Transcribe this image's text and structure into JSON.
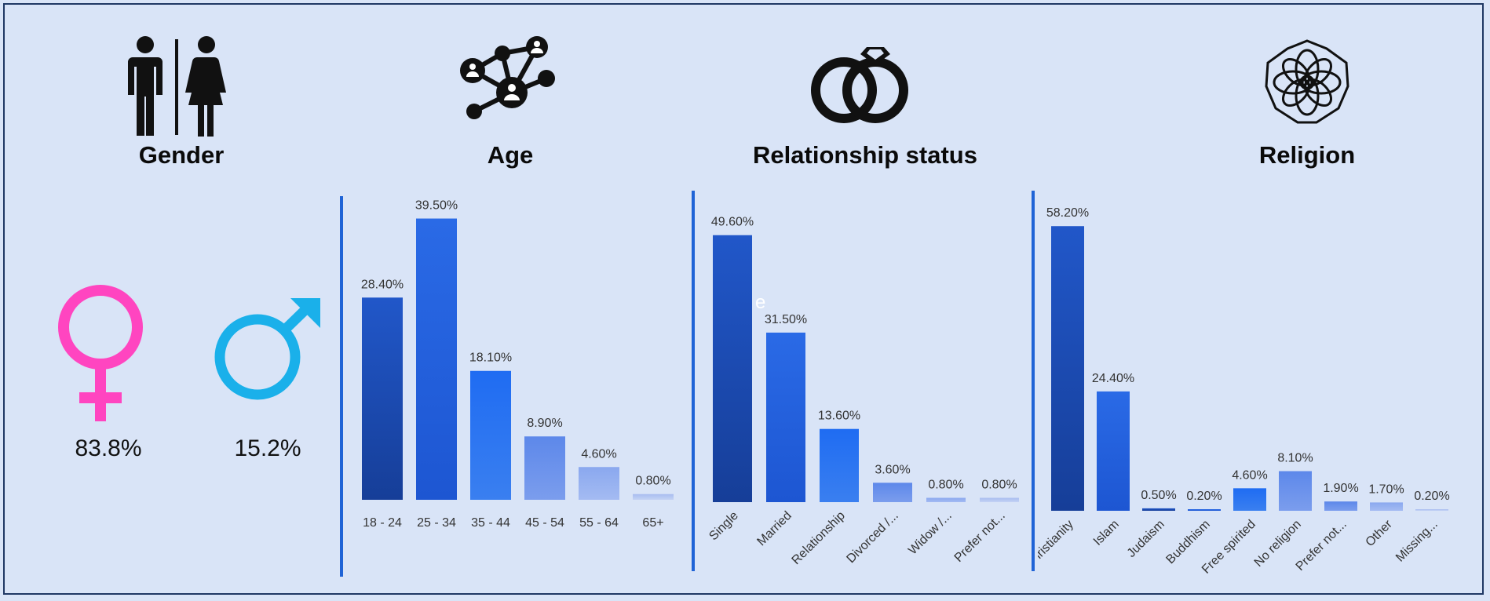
{
  "headings": {
    "gender": "Gender",
    "age": "Age",
    "relationship": "Relationship status",
    "religion": "Religion"
  },
  "icons": {
    "gender": "restroom-man-woman-icon",
    "age": "people-network-icon",
    "relationship": "wedding-rings-icon",
    "religion": "lotus-flower-icon",
    "female": "female-symbol-icon",
    "male": "male-symbol-icon"
  },
  "gender": {
    "female_value": "83.8%",
    "male_value": "15.2%",
    "female_color": "#ff45c0",
    "male_color": "#1ab0ea"
  },
  "stray_text": "e",
  "chart_data": [
    {
      "type": "bar",
      "title": "Age",
      "categories": [
        "18 - 24",
        "25 - 34",
        "35 - 44",
        "45 - 54",
        "55 - 64",
        "65+"
      ],
      "values": [
        28.4,
        39.5,
        18.1,
        8.9,
        4.6,
        0.8
      ],
      "labels": [
        "28.40%",
        "39.50%",
        "18.10%",
        "8.90%",
        "4.60%",
        "0.80%"
      ],
      "ylim": [
        0,
        40
      ],
      "rotate_ticks": false
    },
    {
      "type": "bar",
      "title": "Relationship status",
      "categories": [
        "Single",
        "Married",
        "Relationship",
        "Divorced /...",
        "Widow /...",
        "Prefer not..."
      ],
      "values": [
        49.6,
        31.5,
        13.6,
        3.6,
        0.8,
        0.8
      ],
      "labels": [
        "49.60%",
        "31.50%",
        "13.60%",
        "3.60%",
        "0.80%",
        "0.80%"
      ],
      "ylim": [
        0,
        50
      ],
      "rotate_ticks": true
    },
    {
      "type": "bar",
      "title": "Religion",
      "categories": [
        "Christianity",
        "Islam",
        "Judaism",
        "Buddhism",
        "Free spirited",
        "No religion",
        "Prefer not...",
        "Other",
        "Missing..."
      ],
      "values": [
        58.2,
        24.4,
        0.5,
        0.2,
        4.6,
        8.1,
        1.9,
        1.7,
        0.2
      ],
      "labels": [
        "58.20%",
        "24.40%",
        "0.50%",
        "0.20%",
        "4.60%",
        "8.10%",
        "1.90%",
        "1.70%",
        "0.20%"
      ],
      "ylim": [
        0,
        60
      ],
      "rotate_ticks": true
    }
  ]
}
